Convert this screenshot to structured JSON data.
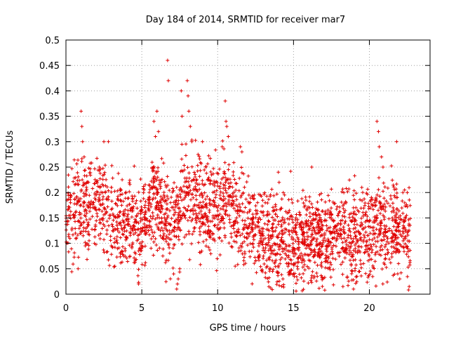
{
  "chart_data": {
    "type": "scatter",
    "title": "Day 184 of 2014, SRMTID for receiver mar7",
    "xlabel": "GPS time / hours",
    "ylabel": "SRMTID / TECUs",
    "xlim": [
      0,
      24
    ],
    "ylim": [
      0,
      0.5
    ],
    "x_ticks": [
      0,
      5,
      10,
      15,
      20
    ],
    "y_ticks": [
      0,
      0.05,
      0.1,
      0.15,
      0.2,
      0.25,
      0.3,
      0.35,
      0.4,
      0.45,
      0.5
    ],
    "x_tick_labels": [
      "0",
      "5",
      "10",
      "15",
      "20"
    ],
    "y_tick_labels": [
      "0",
      "0.05",
      "0.1",
      "0.15",
      "0.2",
      "0.25",
      "0.3",
      "0.35",
      "0.4",
      "0.45",
      "0.5"
    ],
    "grid": true,
    "marker": "+",
    "series": [
      {
        "name": "SRMTID",
        "color": "#e00000",
        "trend": [
          [
            0.0,
            0.16
          ],
          [
            0.5,
            0.17
          ],
          [
            1.0,
            0.18
          ],
          [
            1.5,
            0.17
          ],
          [
            2.0,
            0.19
          ],
          [
            2.5,
            0.18
          ],
          [
            3.0,
            0.15
          ],
          [
            3.5,
            0.14
          ],
          [
            4.0,
            0.14
          ],
          [
            4.5,
            0.13
          ],
          [
            5.0,
            0.13
          ],
          [
            5.5,
            0.17
          ],
          [
            6.0,
            0.18
          ],
          [
            6.5,
            0.15
          ],
          [
            7.0,
            0.15
          ],
          [
            7.5,
            0.17
          ],
          [
            8.0,
            0.19
          ],
          [
            8.5,
            0.18
          ],
          [
            9.0,
            0.17
          ],
          [
            9.5,
            0.16
          ],
          [
            10.0,
            0.17
          ],
          [
            10.5,
            0.19
          ],
          [
            11.0,
            0.16
          ],
          [
            11.5,
            0.15
          ],
          [
            12.0,
            0.14
          ],
          [
            12.5,
            0.13
          ],
          [
            13.0,
            0.12
          ],
          [
            13.5,
            0.1
          ],
          [
            14.0,
            0.1
          ],
          [
            14.5,
            0.11
          ],
          [
            15.0,
            0.1
          ],
          [
            15.5,
            0.11
          ],
          [
            16.0,
            0.12
          ],
          [
            16.5,
            0.11
          ],
          [
            17.0,
            0.1
          ],
          [
            17.5,
            0.11
          ],
          [
            18.0,
            0.12
          ],
          [
            18.5,
            0.12
          ],
          [
            19.0,
            0.11
          ],
          [
            19.5,
            0.11
          ],
          [
            20.0,
            0.12
          ],
          [
            20.5,
            0.15
          ],
          [
            21.0,
            0.14
          ],
          [
            21.5,
            0.13
          ],
          [
            22.0,
            0.12
          ],
          [
            22.5,
            0.11
          ],
          [
            22.7,
            0.12
          ]
        ],
        "spread": 0.045,
        "x_range": [
          0,
          22.7
        ],
        "point_count": 2600,
        "outliers": [
          [
            0.8,
            0.05
          ],
          [
            1.0,
            0.36
          ],
          [
            1.05,
            0.33
          ],
          [
            1.1,
            0.3
          ],
          [
            1.2,
            0.27
          ],
          [
            2.5,
            0.3
          ],
          [
            2.8,
            0.3
          ],
          [
            5.8,
            0.34
          ],
          [
            5.9,
            0.31
          ],
          [
            6.0,
            0.36
          ],
          [
            6.1,
            0.32
          ],
          [
            6.7,
            0.46
          ],
          [
            6.75,
            0.42
          ],
          [
            7.3,
            0.01
          ],
          [
            7.35,
            0.02
          ],
          [
            7.4,
            0.03
          ],
          [
            7.5,
            0.05
          ],
          [
            7.6,
            0.4
          ],
          [
            7.65,
            0.35
          ],
          [
            8.0,
            0.42
          ],
          [
            8.05,
            0.39
          ],
          [
            8.1,
            0.36
          ],
          [
            8.2,
            0.33
          ],
          [
            8.3,
            0.3
          ],
          [
            9.0,
            0.3
          ],
          [
            10.3,
            0.29
          ],
          [
            10.5,
            0.38
          ],
          [
            10.55,
            0.34
          ],
          [
            10.6,
            0.33
          ],
          [
            10.7,
            0.31
          ],
          [
            11.5,
            0.29
          ],
          [
            11.6,
            0.28
          ],
          [
            14.0,
            0.24
          ],
          [
            14.05,
            0.22
          ],
          [
            14.3,
            0.03
          ],
          [
            14.8,
            0.04
          ],
          [
            16.2,
            0.25
          ],
          [
            19.5,
            0.21
          ],
          [
            20.5,
            0.34
          ],
          [
            20.6,
            0.32
          ],
          [
            20.65,
            0.29
          ],
          [
            20.8,
            0.27
          ],
          [
            20.9,
            0.25
          ],
          [
            21.8,
            0.3
          ],
          [
            22.0,
            0.03
          ],
          [
            22.5,
            0.2
          ]
        ]
      }
    ]
  }
}
